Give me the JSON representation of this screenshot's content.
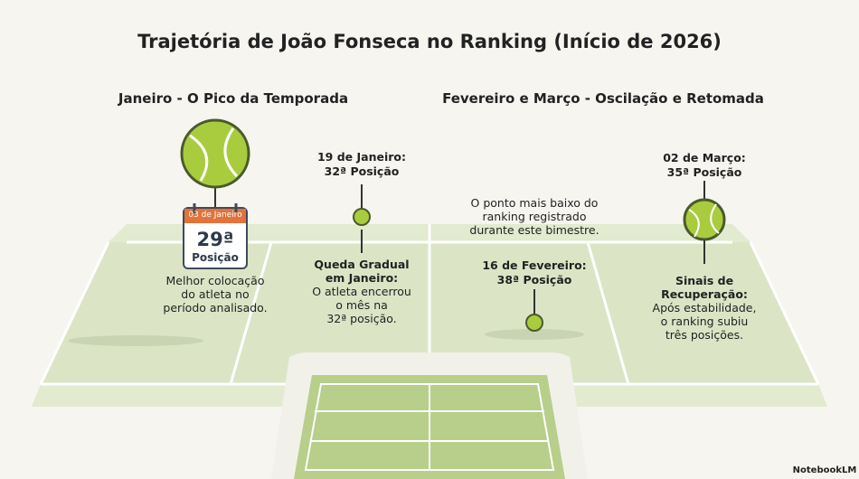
{
  "header": {
    "title": "Trajetória de João Fonseca no Ranking (Início de 2026)"
  },
  "sections": [
    {
      "heading": "Janeiro - O Pico da Temporada",
      "events": [
        {
          "calendar_date": "03 de Janeiro",
          "rank": "29ª",
          "rank_label": "Posição",
          "description": [
            "Melhor colocação",
            "do atleta no",
            "período analisado."
          ]
        },
        {
          "label": [
            "19 de Janeiro:",
            "32ª Posição"
          ],
          "heading": [
            "Queda Gradual",
            "em Janeiro:"
          ],
          "description": [
            "O atleta encerrou",
            "o mês na",
            "32ª posição."
          ]
        }
      ]
    },
    {
      "heading": "Fevereiro e Março - Oscilação e Retomada",
      "events": [
        {
          "note": [
            "O ponto mais baixo do",
            "ranking registrado",
            "durante este bimestre."
          ],
          "label": [
            "16 de Fevereiro:",
            "38ª Posição"
          ]
        },
        {
          "label": [
            "02 de Março:",
            "35ª Posição"
          ],
          "heading": [
            "Sinais de",
            "Recuperação:"
          ],
          "description": [
            "Após estabilidade,",
            "o ranking subiu",
            "três posições."
          ]
        }
      ]
    }
  ],
  "footer": {
    "brand": "NotebookLM"
  }
}
